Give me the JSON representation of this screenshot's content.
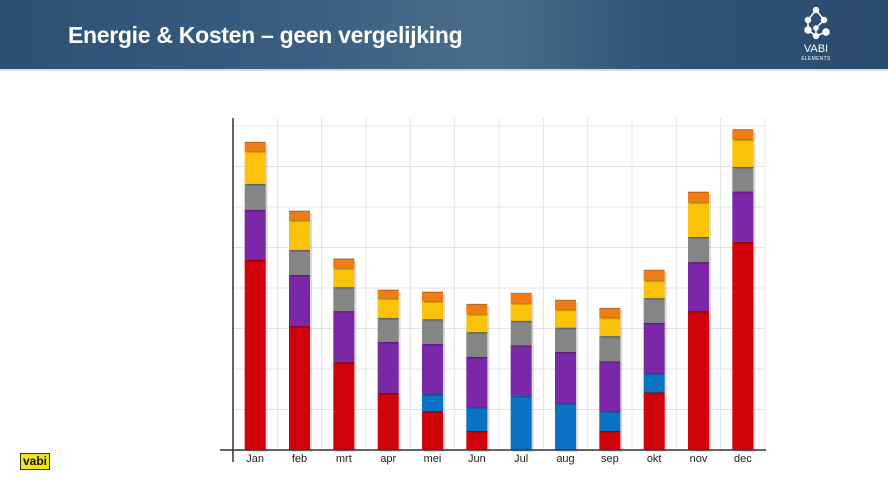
{
  "header": {
    "title": "Energie & Kosten – geen vergelijking",
    "logo_text": "VABI",
    "logo_sub": "ELEMENTS"
  },
  "footer": {
    "brand": "vabi"
  },
  "chart_data": {
    "type": "bar",
    "stacked": true,
    "title": "",
    "xlabel": "",
    "ylabel": "",
    "ylim": [
      0,
      8
    ],
    "grid": true,
    "legend": "none",
    "categories": [
      "Jan",
      "feb",
      "mrt",
      "apr",
      "mei",
      "Jun",
      "Jul",
      "aug",
      "sep",
      "okt",
      "nov",
      "dec"
    ],
    "series": [
      {
        "name": "",
        "color": "#d0020a",
        "values": [
          4.7,
          3.06,
          2.17,
          1.41,
          0.96,
          0.47,
          0,
          0,
          0.47,
          1.42,
          3.42,
          5.14
        ]
      },
      {
        "name": "",
        "color": "#0a72c4",
        "values": [
          0,
          0,
          0,
          0,
          0.42,
          0.59,
          1.34,
          1.16,
          0.49,
          0.48,
          0,
          0
        ]
      },
      {
        "name": "",
        "color": "#7a28a8",
        "values": [
          1.23,
          1.26,
          1.26,
          1.26,
          1.24,
          1.24,
          1.24,
          1.26,
          1.23,
          1.24,
          1.22,
          1.24
        ]
      },
      {
        "name": "",
        "color": "#858585",
        "values": [
          0.64,
          0.62,
          0.59,
          0.59,
          0.61,
          0.61,
          0.61,
          0.6,
          0.62,
          0.61,
          0.62,
          0.61
        ]
      },
      {
        "name": "",
        "color": "#fbc20a",
        "values": [
          0.81,
          0.74,
          0.47,
          0.49,
          0.45,
          0.45,
          0.44,
          0.45,
          0.46,
          0.44,
          0.86,
          0.68
        ]
      },
      {
        "name": "",
        "color": "#f07c14",
        "values": [
          0.22,
          0.22,
          0.23,
          0.2,
          0.22,
          0.24,
          0.24,
          0.23,
          0.23,
          0.25,
          0.25,
          0.24
        ]
      }
    ]
  }
}
